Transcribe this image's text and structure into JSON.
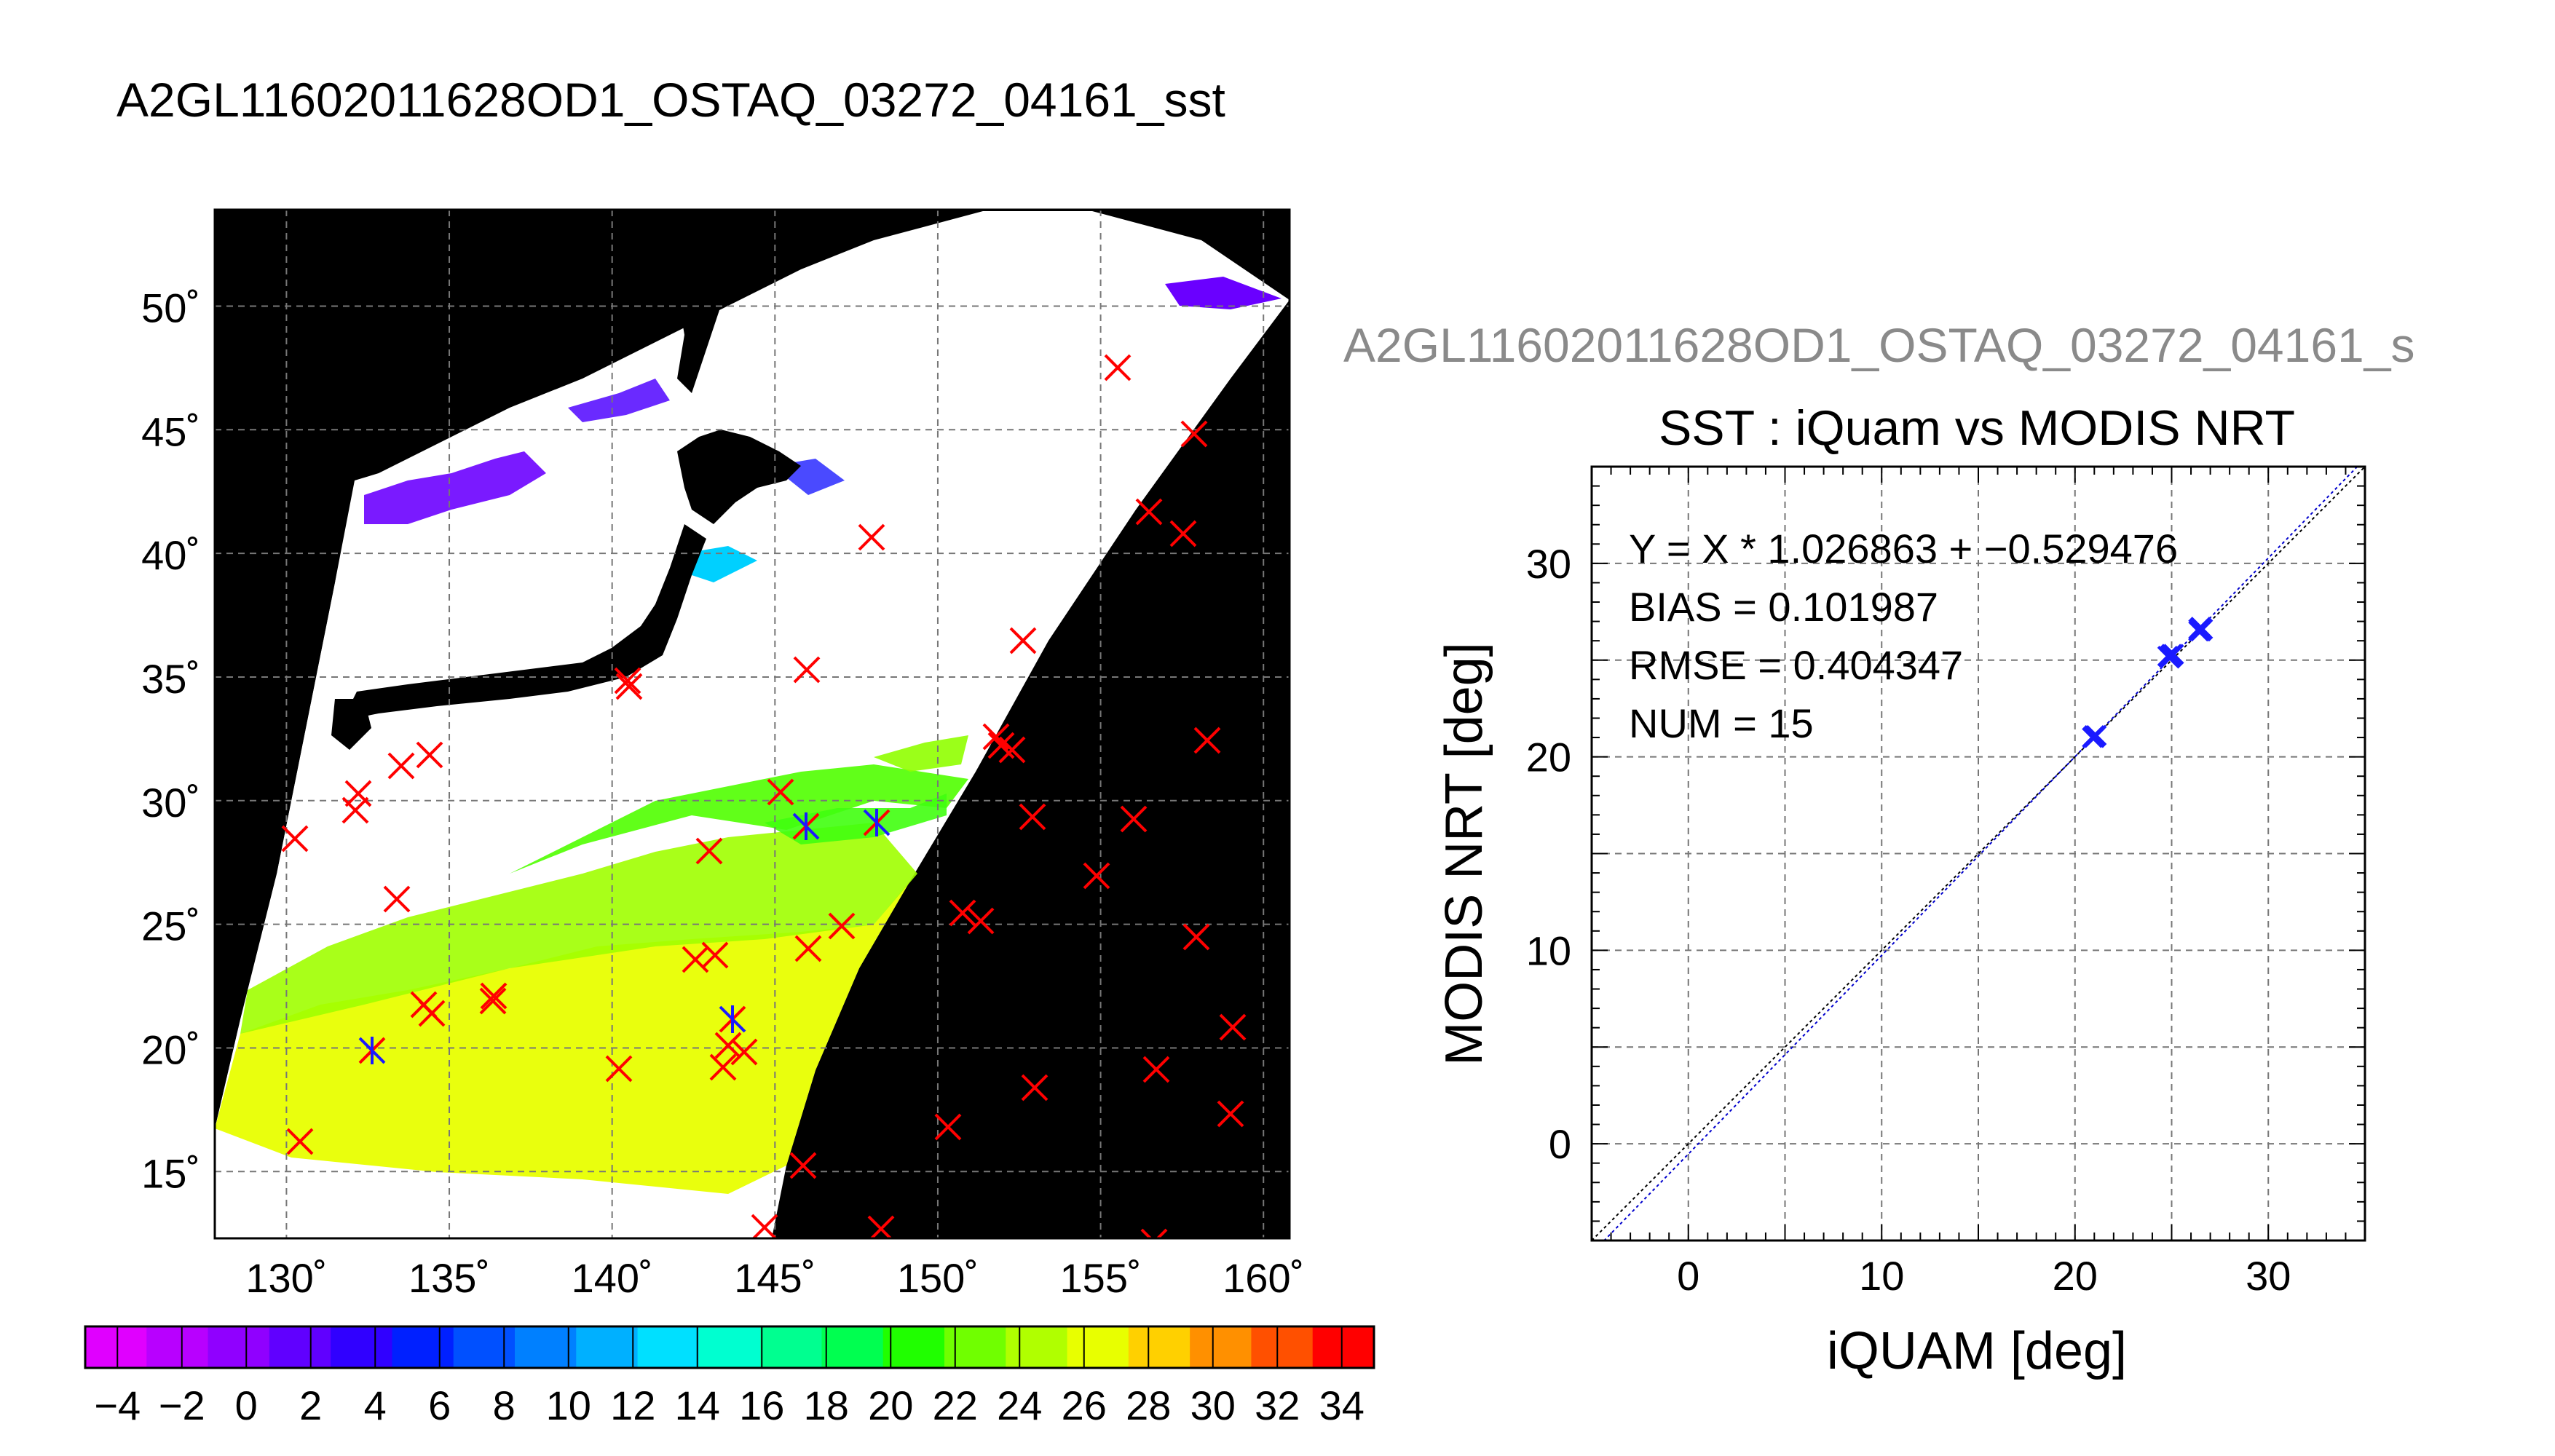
{
  "page": {
    "main_title": "A2GL11602011628OD1_OSTAQ_03272_04161_sst",
    "secondary_title": "A2GL11602011628OD1_OSTAQ_03272_04161_s"
  },
  "colors": {
    "land": "#000000",
    "cloud": "#ffffff",
    "marker_match": "#1a1aff",
    "marker_other": "#ff0000",
    "fit_line": "#0000cc",
    "identity_line": "#000000",
    "grid": "#777777"
  },
  "map": {
    "lon_ticks": [
      130,
      135,
      140,
      145,
      150,
      155,
      160
    ],
    "lon_labels": [
      "130˚",
      "135˚",
      "140˚",
      "145˚",
      "150˚",
      "155˚",
      "160˚"
    ],
    "lat_ticks": [
      15,
      20,
      25,
      30,
      35,
      40,
      45,
      50
    ],
    "lat_labels": [
      "15˚",
      "20˚",
      "25˚",
      "30˚",
      "35˚",
      "40˚",
      "45˚",
      "50˚"
    ],
    "lon_range": [
      127.8,
      160.8
    ],
    "lat_range": [
      12.3,
      53.9
    ]
  },
  "colorbar": {
    "tick_labels": [
      "−4",
      "−2",
      "0",
      "2",
      "4",
      "6",
      "8",
      "10",
      "12",
      "14",
      "16",
      "18",
      "20",
      "22",
      "24",
      "26",
      "28",
      "30",
      "32",
      "34"
    ],
    "colors": [
      "#e000ff",
      "#b800ff",
      "#9000ff",
      "#6000ff",
      "#3000ff",
      "#0020ff",
      "#0050ff",
      "#0080ff",
      "#00b0ff",
      "#00e0ff",
      "#00ffd0",
      "#00ff90",
      "#00ff50",
      "#20ff00",
      "#70ff00",
      "#b0ff00",
      "#e8ff00",
      "#ffd000",
      "#ff9000",
      "#ff5000",
      "#ff0000"
    ],
    "range": [
      -5,
      35
    ]
  },
  "chart_data": {
    "type": "scatter",
    "title": "SST : iQuam vs MODIS NRT",
    "xlabel": "iQUAM [deg]",
    "ylabel": "MODIS NRT [deg]",
    "xlim": [
      -5,
      35
    ],
    "ylim": [
      -5,
      35
    ],
    "x_ticks": [
      0,
      10,
      20,
      30
    ],
    "y_ticks": [
      0,
      10,
      20,
      30
    ],
    "grid": true,
    "annotations": [
      "Y = X * 1.026863 + −0.529476",
      "BIAS = 0.101987",
      "RMSE = 0.404347",
      "NUM = 15"
    ],
    "fit": {
      "slope": 1.026863,
      "intercept": -0.529476
    },
    "points": [
      {
        "x": 21.0,
        "y": 21.1
      },
      {
        "x": 20.9,
        "y": 21.0
      },
      {
        "x": 21.1,
        "y": 21.1
      },
      {
        "x": 24.8,
        "y": 25.2
      },
      {
        "x": 25.0,
        "y": 25.3
      },
      {
        "x": 24.9,
        "y": 25.1
      },
      {
        "x": 25.1,
        "y": 25.3
      },
      {
        "x": 26.4,
        "y": 26.6
      },
      {
        "x": 26.5,
        "y": 26.7
      },
      {
        "x": 26.6,
        "y": 26.6
      },
      {
        "x": 26.5,
        "y": 26.5
      },
      {
        "x": 24.9,
        "y": 25.2
      },
      {
        "x": 21.0,
        "y": 21.0
      },
      {
        "x": 26.4,
        "y": 26.5
      },
      {
        "x": 25.0,
        "y": 25.2
      }
    ]
  }
}
